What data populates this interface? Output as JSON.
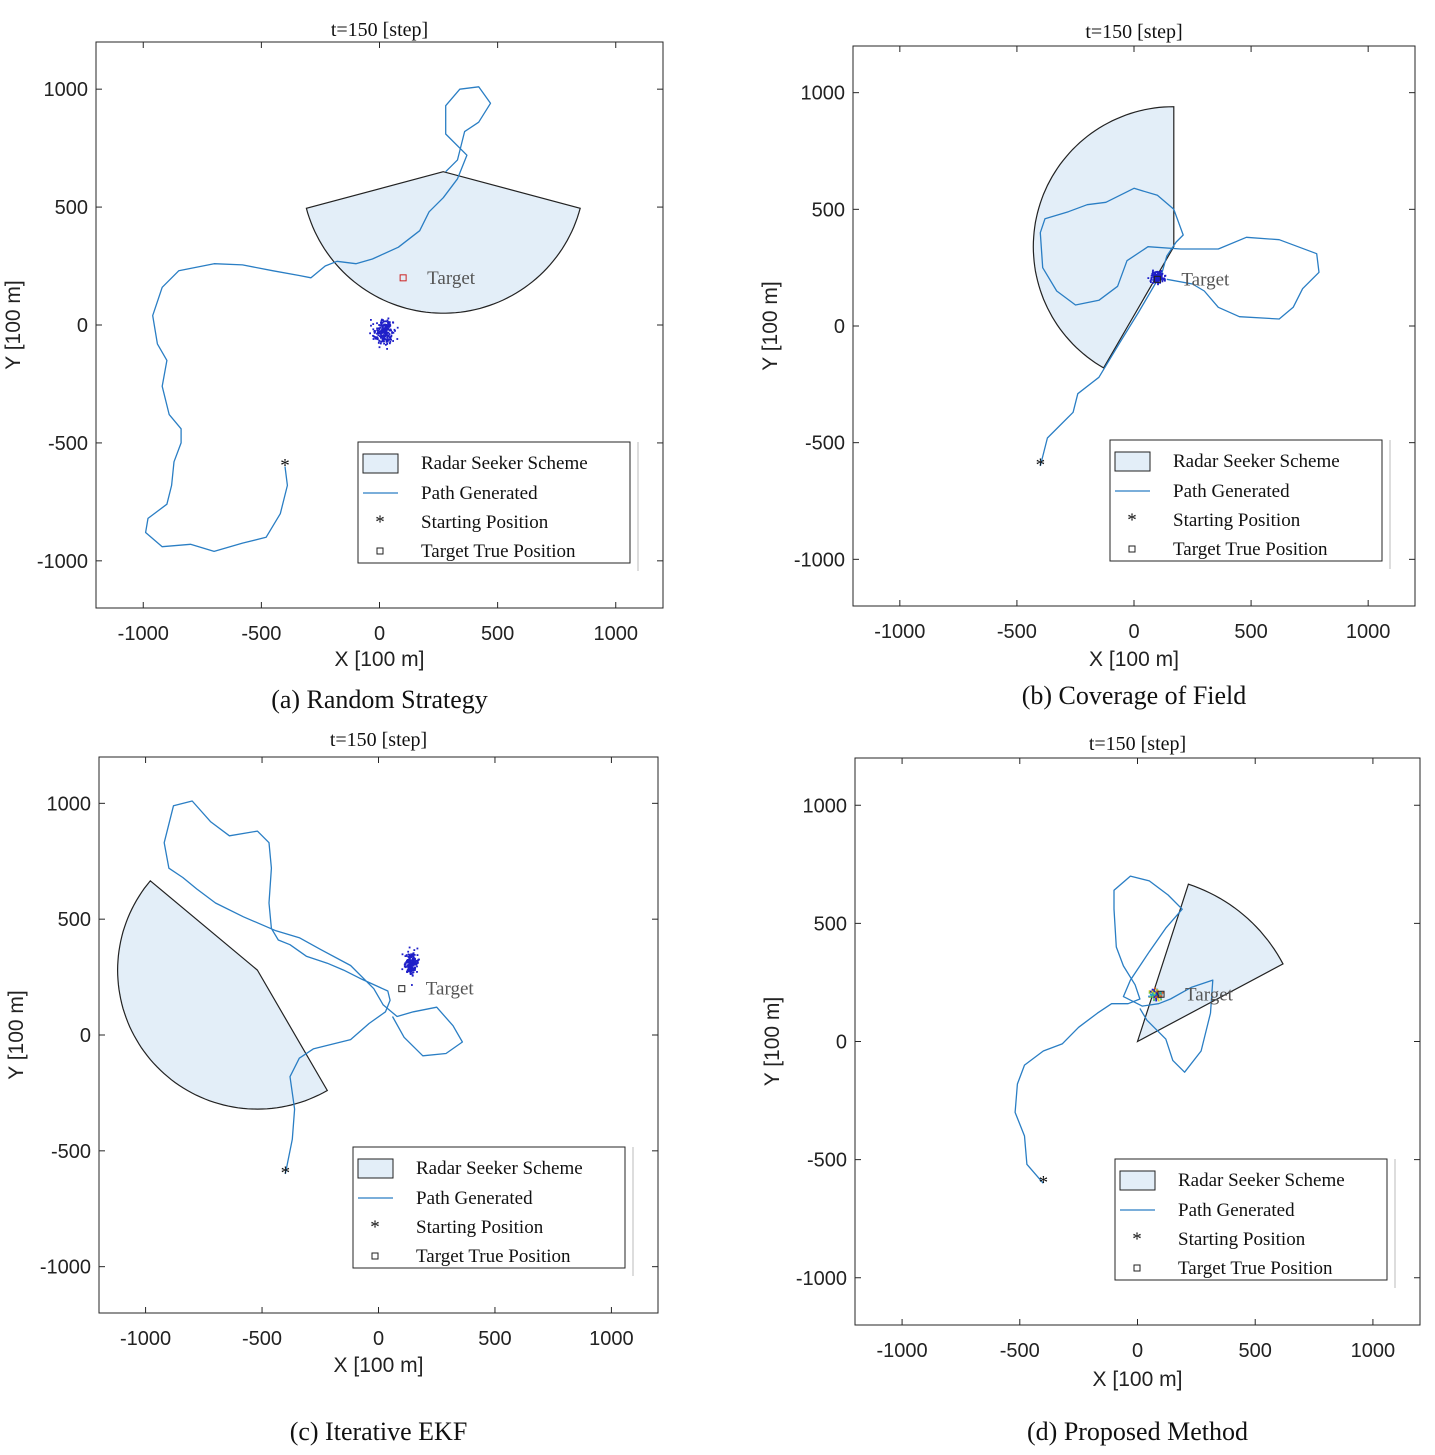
{
  "colors": {
    "path": "#2a7ec4",
    "sector_fill": "#e3eef8",
    "sector_edge": "#222222",
    "particles": "#1f1fc8",
    "target_marker": "#cc2222"
  },
  "legend_items": [
    "Radar Seeker Scheme",
    "Path Generated",
    "Starting Position",
    "Target True Position"
  ],
  "chart_data": [
    {
      "type": "scatter",
      "title": "t=150 [step]",
      "caption": "(a) Random Strategy",
      "xlabel": "X [100 m]",
      "ylabel": "Y [100 m]",
      "xlim": [
        -1200,
        1200
      ],
      "ylim": [
        -1200,
        1200
      ],
      "xticks": [
        "-1000",
        "-500",
        "0",
        "500",
        "1000"
      ],
      "yticks": [
        "1000",
        "500",
        "0",
        "-500",
        "-1000"
      ],
      "target_label": "Target",
      "start": [
        -400,
        -600
      ],
      "target": [
        100,
        200
      ],
      "sector": {
        "apex": [
          270,
          650
        ],
        "radius": 600,
        "start_deg": 195,
        "end_deg": 345
      },
      "particles": {
        "center": [
          20,
          -30
        ],
        "spread": [
          45,
          50
        ],
        "count": 220,
        "multi_color": false
      },
      "path": [
        [
          -400,
          -600
        ],
        [
          -390,
          -680
        ],
        [
          -420,
          -800
        ],
        [
          -480,
          -900
        ],
        [
          -580,
          -925
        ],
        [
          -700,
          -960
        ],
        [
          -800,
          -930
        ],
        [
          -920,
          -940
        ],
        [
          -990,
          -880
        ],
        [
          -980,
          -820
        ],
        [
          -900,
          -760
        ],
        [
          -880,
          -680
        ],
        [
          -870,
          -580
        ],
        [
          -840,
          -500
        ],
        [
          -840,
          -440
        ],
        [
          -890,
          -380
        ],
        [
          -920,
          -260
        ],
        [
          -900,
          -150
        ],
        [
          -940,
          -80
        ],
        [
          -960,
          40
        ],
        [
          -920,
          160
        ],
        [
          -850,
          230
        ],
        [
          -700,
          260
        ],
        [
          -580,
          255
        ],
        [
          -450,
          230
        ],
        [
          -340,
          210
        ],
        [
          -290,
          200
        ],
        [
          -230,
          250
        ],
        [
          -180,
          270
        ],
        [
          -100,
          260
        ],
        [
          -30,
          280
        ],
        [
          80,
          330
        ],
        [
          170,
          400
        ],
        [
          210,
          480
        ],
        [
          270,
          540
        ],
        [
          330,
          620
        ],
        [
          370,
          720
        ],
        [
          280,
          810
        ],
        [
          280,
          930
        ],
        [
          340,
          1000
        ],
        [
          420,
          1010
        ],
        [
          470,
          940
        ],
        [
          420,
          860
        ],
        [
          360,
          820
        ],
        [
          330,
          700
        ],
        [
          280,
          650
        ]
      ]
    },
    {
      "type": "scatter",
      "title": "t=150 [step]",
      "caption": "(b) Coverage of Field",
      "xlabel": "X [100 m]",
      "ylabel": "Y [100 m]",
      "xlim": [
        -1200,
        1200
      ],
      "ylim": [
        -1200,
        1200
      ],
      "xticks": [
        "-1000",
        "-500",
        "0",
        "500",
        "1000"
      ],
      "yticks": [
        "1000",
        "500",
        "0",
        "-500",
        "-1000"
      ],
      "target_label": "Target",
      "start": [
        -400,
        -600
      ],
      "target": [
        100,
        200
      ],
      "sector": {
        "apex": [
          170,
          340
        ],
        "radius": 600,
        "start_deg": 90,
        "end_deg": 240
      },
      "particles": {
        "center": [
          100,
          210
        ],
        "spread": [
          25,
          25
        ],
        "count": 160,
        "multi_color": false
      },
      "path": [
        [
          -400,
          -600
        ],
        [
          -370,
          -480
        ],
        [
          -260,
          -370
        ],
        [
          -240,
          -290
        ],
        [
          -150,
          -220
        ],
        [
          -60,
          -70
        ],
        [
          20,
          60
        ],
        [
          90,
          180
        ],
        [
          120,
          230
        ],
        [
          140,
          300
        ],
        [
          180,
          360
        ],
        [
          210,
          390
        ],
        [
          170,
          500
        ],
        [
          100,
          560
        ],
        [
          0,
          590
        ],
        [
          -120,
          530
        ],
        [
          -200,
          520
        ],
        [
          -280,
          490
        ],
        [
          -380,
          460
        ],
        [
          -400,
          400
        ],
        [
          -390,
          250
        ],
        [
          -330,
          150
        ],
        [
          -250,
          90
        ],
        [
          -150,
          110
        ],
        [
          -70,
          170
        ],
        [
          -30,
          280
        ],
        [
          60,
          340
        ],
        [
          200,
          330
        ],
        [
          360,
          330
        ],
        [
          480,
          380
        ],
        [
          620,
          370
        ],
        [
          780,
          310
        ],
        [
          790,
          230
        ],
        [
          720,
          160
        ],
        [
          680,
          80
        ],
        [
          620,
          30
        ],
        [
          450,
          40
        ],
        [
          360,
          80
        ],
        [
          300,
          150
        ],
        [
          250,
          180
        ],
        [
          140,
          200
        ]
      ]
    },
    {
      "type": "scatter",
      "title": "t=150 [step]",
      "caption": "(c) Iterative EKF",
      "xlabel": "X [100 m]",
      "ylabel": "Y [100 m]",
      "xlim": [
        -1200,
        1200
      ],
      "ylim": [
        -1200,
        1200
      ],
      "xticks": [
        "-1000",
        "-500",
        "0",
        "500",
        "1000"
      ],
      "yticks": [
        "1000",
        "500",
        "0",
        "-500",
        "-1000"
      ],
      "target_label": "Target",
      "start": [
        -400,
        -600
      ],
      "target": [
        100,
        200
      ],
      "sector": {
        "apex": [
          -520,
          280
        ],
        "radius": 600,
        "start_deg": 140,
        "end_deg": 300
      },
      "particles": {
        "center": [
          140,
          310
        ],
        "spread": [
          25,
          50
        ],
        "count": 200,
        "multi_color": false
      },
      "path": [
        [
          -400,
          -600
        ],
        [
          -370,
          -450
        ],
        [
          -360,
          -320
        ],
        [
          -380,
          -180
        ],
        [
          -340,
          -100
        ],
        [
          -280,
          -60
        ],
        [
          -200,
          -40
        ],
        [
          -120,
          -20
        ],
        [
          -40,
          50
        ],
        [
          30,
          100
        ],
        [
          50,
          150
        ],
        [
          40,
          190
        ],
        [
          -70,
          240
        ],
        [
          -150,
          280
        ],
        [
          -220,
          310
        ],
        [
          -310,
          340
        ],
        [
          -380,
          390
        ],
        [
          -430,
          410
        ],
        [
          -460,
          460
        ],
        [
          -470,
          570
        ],
        [
          -460,
          720
        ],
        [
          -470,
          830
        ],
        [
          -520,
          880
        ],
        [
          -640,
          860
        ],
        [
          -720,
          920
        ],
        [
          -800,
          1010
        ],
        [
          -880,
          990
        ],
        [
          -920,
          830
        ],
        [
          -900,
          720
        ],
        [
          -840,
          680
        ],
        [
          -780,
          630
        ],
        [
          -700,
          570
        ],
        [
          -580,
          510
        ],
        [
          -440,
          450
        ],
        [
          -340,
          420
        ],
        [
          -250,
          370
        ],
        [
          -120,
          300
        ],
        [
          -20,
          200
        ],
        [
          20,
          130
        ],
        [
          80,
          80
        ],
        [
          150,
          100
        ],
        [
          250,
          120
        ],
        [
          320,
          40
        ],
        [
          360,
          -30
        ],
        [
          290,
          -80
        ],
        [
          190,
          -90
        ],
        [
          110,
          -10
        ],
        [
          60,
          80
        ]
      ]
    },
    {
      "type": "scatter",
      "title": "t=150 [step]",
      "caption": "(d) Proposed Method",
      "xlabel": "X [100 m]",
      "ylabel": "Y [100 m]",
      "xlim": [
        -1200,
        1200
      ],
      "ylim": [
        -1200,
        1200
      ],
      "xticks": [
        "-1000",
        "-500",
        "0",
        "500",
        "1000"
      ],
      "yticks": [
        "1000",
        "500",
        "0",
        "-500",
        "-1000"
      ],
      "target_label": "Target",
      "start": [
        -400,
        -600
      ],
      "target": [
        100,
        200
      ],
      "sector": {
        "apex": [
          0,
          0
        ],
        "radius": 700,
        "start_deg": 28,
        "end_deg": 72
      },
      "particles": {
        "center": [
          80,
          200
        ],
        "spread": [
          25,
          20
        ],
        "count": 160,
        "multi_color": true
      },
      "path": [
        [
          -400,
          -600
        ],
        [
          -470,
          -520
        ],
        [
          -480,
          -400
        ],
        [
          -520,
          -300
        ],
        [
          -510,
          -180
        ],
        [
          -480,
          -100
        ],
        [
          -400,
          -40
        ],
        [
          -320,
          -10
        ],
        [
          -250,
          60
        ],
        [
          -170,
          120
        ],
        [
          -110,
          160
        ],
        [
          -40,
          160
        ],
        [
          10,
          180
        ],
        [
          -10,
          240
        ],
        [
          -60,
          320
        ],
        [
          -90,
          400
        ],
        [
          -100,
          560
        ],
        [
          -100,
          640
        ],
        [
          -30,
          700
        ],
        [
          50,
          680
        ],
        [
          130,
          620
        ],
        [
          190,
          560
        ],
        [
          120,
          480
        ],
        [
          50,
          380
        ],
        [
          -30,
          260
        ],
        [
          -60,
          190
        ],
        [
          20,
          150
        ],
        [
          90,
          160
        ],
        [
          140,
          180
        ],
        [
          230,
          230
        ],
        [
          320,
          260
        ],
        [
          310,
          120
        ],
        [
          270,
          -40
        ],
        [
          200,
          -130
        ],
        [
          150,
          -80
        ],
        [
          120,
          10
        ],
        [
          40,
          90
        ],
        [
          10,
          140
        ]
      ]
    }
  ]
}
